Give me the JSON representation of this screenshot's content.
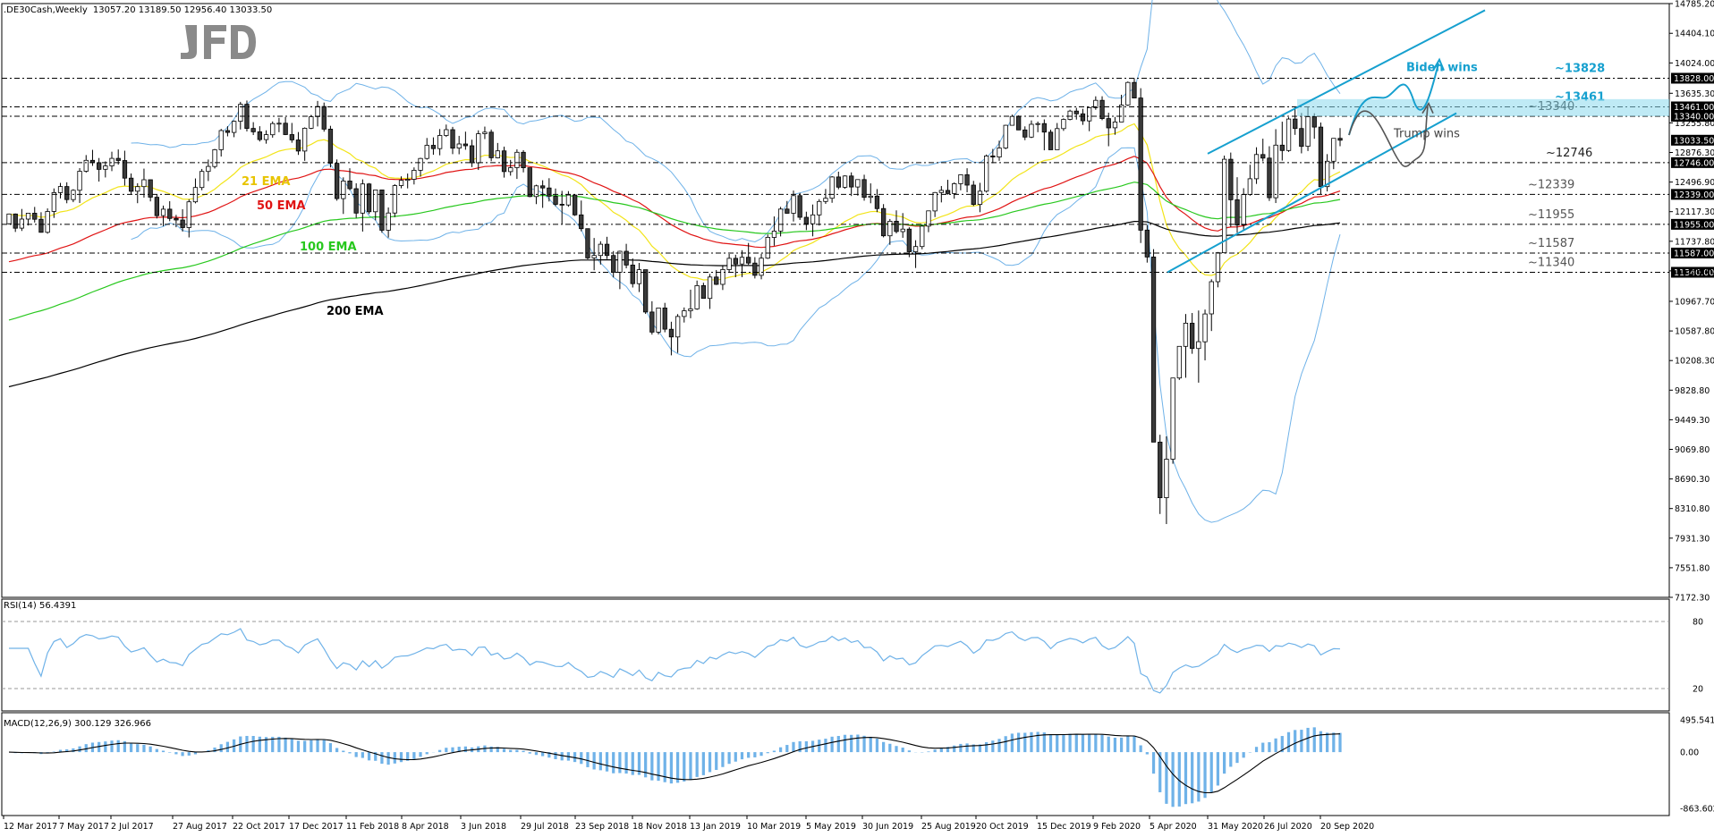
{
  "header": {
    "symbol": ".DE30Cash,Weekly",
    "ohlc": "13057.20 13189.50 12956.40 13033.50"
  },
  "logo": "JFD",
  "chart_data": {
    "type": "candlestick",
    "timeframe": "Weekly",
    "x_tick_labels": [
      "12 Mar 2017",
      "7 May 2017",
      "2 Jul 2017",
      "27 Aug 2017",
      "22 Oct 2017",
      "17 Dec 2017",
      "11 Feb 2018",
      "8 Apr 2018",
      "3 Jun 2018",
      "29 Jul 2018",
      "23 Sep 2018",
      "18 Nov 2018",
      "13 Jan 2019",
      "10 Mar 2019",
      "5 May 2019",
      "30 Jun 2019",
      "25 Aug 2019",
      "20 Oct 2019",
      "15 Dec 2019",
      "9 Feb 2020",
      "5 Apr 2020",
      "31 May 2020",
      "26 Jul 2020",
      "20 Sep 2020"
    ],
    "price_axis_labels": [
      "14785.20",
      "14404.10",
      "14024.00",
      "13635.30",
      "13255.80",
      "12876.30",
      "12496.90",
      "12117.30",
      "11737.80",
      "11358.40",
      "10967.70",
      "10587.80",
      "10208.30",
      "9828.80",
      "9449.30",
      "9069.80",
      "8690.30",
      "8310.80",
      "7931.30",
      "7551.80",
      "7172.30"
    ],
    "price_range": [
      7172.3,
      14785.2
    ],
    "ohlc_weekly": [
      [
        11963,
        12093,
        11953,
        12088
      ],
      [
        12088,
        12094,
        11857,
        11906
      ],
      [
        11906,
        12152,
        11870,
        12022
      ],
      [
        12022,
        12075,
        11940,
        12098
      ],
      [
        12098,
        12178,
        11978,
        12020
      ],
      [
        12020,
        12110,
        11849,
        11853
      ],
      [
        11853,
        12159,
        11835,
        12120
      ],
      [
        12120,
        12415,
        12037,
        12361
      ],
      [
        12361,
        12486,
        12287,
        12439
      ],
      [
        12439,
        12494,
        12225,
        12272
      ],
      [
        12272,
        12405,
        12239,
        12391
      ],
      [
        12391,
        12676,
        12229,
        12635
      ],
      [
        12635,
        12843,
        12618,
        12775
      ],
      [
        12775,
        12910,
        12704,
        12746
      ],
      [
        12746,
        12805,
        12503,
        12660
      ],
      [
        12660,
        12762,
        12556,
        12704
      ],
      [
        12704,
        12886,
        12637,
        12800
      ],
      [
        12800,
        12915,
        12720,
        12773
      ],
      [
        12773,
        12899,
        12452,
        12547
      ],
      [
        12547,
        12607,
        12337,
        12379
      ],
      [
        12379,
        12482,
        12226,
        12438
      ],
      [
        12438,
        12669,
        12297,
        12526
      ],
      [
        12526,
        12529,
        12249,
        12302
      ],
      [
        12302,
        12339,
        12030,
        12066
      ],
      [
        12066,
        12195,
        11931,
        12149
      ],
      [
        12149,
        12251,
        11995,
        12030
      ],
      [
        12030,
        12076,
        11918,
        12011
      ],
      [
        12011,
        12149,
        11863,
        11913
      ],
      [
        11913,
        12276,
        11787,
        12243
      ],
      [
        12243,
        12543,
        12224,
        12427
      ],
      [
        12427,
        12665,
        12392,
        12633
      ],
      [
        12633,
        12786,
        12510,
        12697
      ],
      [
        12697,
        12922,
        12671,
        12912
      ],
      [
        12912,
        13178,
        12824,
        13157
      ],
      [
        13157,
        13213,
        13083,
        13133
      ],
      [
        13133,
        13286,
        13072,
        13276
      ],
      [
        13276,
        13525,
        13171,
        13494
      ],
      [
        13494,
        13542,
        13146,
        13185
      ],
      [
        13185,
        13265,
        13100,
        13141
      ],
      [
        13141,
        13213,
        13017,
        13041
      ],
      [
        13041,
        13160,
        12989,
        13104
      ],
      [
        13104,
        13274,
        13066,
        13247
      ],
      [
        13247,
        13320,
        13136,
        13251
      ],
      [
        13251,
        13331,
        13099,
        13105
      ],
      [
        13105,
        13255,
        13001,
        13037
      ],
      [
        13037,
        13138,
        12845,
        12895
      ],
      [
        12895,
        13198,
        12769,
        13187
      ],
      [
        13187,
        13358,
        13175,
        13335
      ],
      [
        13335,
        13537,
        13210,
        13465
      ],
      [
        13465,
        13516,
        13143,
        13175
      ],
      [
        13175,
        13218,
        12685,
        12738
      ],
      [
        12738,
        12787,
        12258,
        12285
      ],
      [
        12285,
        12557,
        12088,
        12511
      ],
      [
        12511,
        12674,
        12392,
        12412
      ],
      [
        12412,
        12481,
        12037,
        12099
      ],
      [
        12099,
        12531,
        11862,
        12473
      ],
      [
        12473,
        12484,
        12087,
        12116
      ],
      [
        12116,
        12392,
        12005,
        12396
      ],
      [
        12396,
        12398,
        11847,
        11879
      ],
      [
        11879,
        12171,
        11785,
        12100
      ],
      [
        12100,
        12469,
        12047,
        12451
      ],
      [
        12451,
        12570,
        12417,
        12518
      ],
      [
        12518,
        12606,
        12416,
        12532
      ],
      [
        12532,
        12685,
        12466,
        12648
      ],
      [
        12648,
        12808,
        12566,
        12799
      ],
      [
        12799,
        13062,
        12784,
        12968
      ],
      [
        12968,
        13070,
        12847,
        12926
      ],
      [
        12926,
        13176,
        12840,
        13094
      ],
      [
        13094,
        13234,
        13075,
        13169
      ],
      [
        13169,
        13204,
        12855,
        12932
      ],
      [
        12932,
        13089,
        12853,
        12985
      ],
      [
        12985,
        13143,
        12911,
        12962
      ],
      [
        12962,
        13040,
        12689,
        12743
      ],
      [
        12743,
        13160,
        12652,
        13116
      ],
      [
        13116,
        13208,
        13048,
        13136
      ],
      [
        13136,
        13170,
        12764,
        12808
      ],
      [
        12808,
        12998,
        12800,
        12897
      ],
      [
        12897,
        12951,
        12554,
        12631
      ],
      [
        12631,
        12781,
        12579,
        12681
      ],
      [
        12681,
        12916,
        12537,
        12878
      ],
      [
        12878,
        12906,
        12621,
        12680
      ],
      [
        12680,
        12680,
        12302,
        12311
      ],
      [
        12311,
        12463,
        12214,
        12449
      ],
      [
        12449,
        12520,
        12166,
        12421
      ],
      [
        12421,
        12546,
        12248,
        12315
      ],
      [
        12315,
        12414,
        12188,
        12212
      ],
      [
        12212,
        12384,
        11957,
        12203
      ],
      [
        12203,
        12381,
        12180,
        12330
      ],
      [
        12330,
        12342,
        12063,
        12076
      ],
      [
        12076,
        12260,
        11866,
        11899
      ],
      [
        11899,
        11899,
        11506,
        11524
      ],
      [
        11524,
        11780,
        11366,
        11555
      ],
      [
        11555,
        11738,
        11439,
        11700
      ],
      [
        11700,
        11795,
        11511,
        11556
      ],
      [
        11556,
        11612,
        11275,
        11341
      ],
      [
        11341,
        11617,
        11124,
        11609
      ],
      [
        11609,
        11705,
        11391,
        11433
      ],
      [
        11433,
        11518,
        11145,
        11194
      ],
      [
        11194,
        11460,
        11087,
        11373
      ],
      [
        11373,
        11373,
        10806,
        10831
      ],
      [
        10831,
        10969,
        10541,
        10573
      ],
      [
        10573,
        10883,
        10543,
        10882
      ],
      [
        10882,
        10948,
        10571,
        10610
      ],
      [
        10610,
        10706,
        10275,
        10511
      ],
      [
        10511,
        10804,
        10306,
        10774
      ],
      [
        10774,
        10889,
        10696,
        10847
      ],
      [
        10847,
        11117,
        10751,
        10871
      ],
      [
        10871,
        11234,
        10859,
        11169
      ],
      [
        11169,
        11206,
        11004,
        11005
      ],
      [
        11005,
        11319,
        10870,
        11279
      ],
      [
        11279,
        11369,
        11177,
        11185
      ],
      [
        11185,
        11433,
        11113,
        11375
      ],
      [
        11375,
        11575,
        11334,
        11519
      ],
      [
        11519,
        11565,
        11277,
        11446
      ],
      [
        11446,
        11623,
        11278,
        11532
      ],
      [
        11532,
        11716,
        11436,
        11458
      ],
      [
        11458,
        11534,
        11261,
        11301
      ],
      [
        11301,
        11578,
        11250,
        11521
      ],
      [
        11521,
        11825,
        11511,
        11788
      ],
      [
        11788,
        12056,
        11680,
        11869
      ],
      [
        11869,
        12179,
        11800,
        12151
      ],
      [
        12151,
        12254,
        12091,
        12097
      ],
      [
        12097,
        12388,
        11991,
        12323
      ],
      [
        12323,
        12357,
        12011,
        12045
      ],
      [
        12045,
        12117,
        11881,
        11962
      ],
      [
        11962,
        12209,
        11801,
        12076
      ],
      [
        12076,
        12278,
        11939,
        12248
      ],
      [
        12248,
        12408,
        12217,
        12289
      ],
      [
        12289,
        12573,
        12231,
        12562
      ],
      [
        12562,
        12630,
        12404,
        12431
      ],
      [
        12431,
        12583,
        12411,
        12575
      ],
      [
        12575,
        12621,
        12318,
        12434
      ],
      [
        12434,
        12532,
        12322,
        12529
      ],
      [
        12529,
        12591,
        12258,
        12301
      ],
      [
        12301,
        12480,
        12225,
        12317
      ],
      [
        12317,
        12407,
        12111,
        12157
      ],
      [
        12157,
        12214,
        11788,
        11807
      ],
      [
        11807,
        12023,
        11692,
        11994
      ],
      [
        11994,
        12134,
        11839,
        11862
      ],
      [
        11862,
        12099,
        11782,
        11894
      ],
      [
        11894,
        11917,
        11534,
        11604
      ],
      [
        11604,
        11751,
        11395,
        11670
      ],
      [
        11670,
        11952,
        11635,
        11931
      ],
      [
        11931,
        12129,
        11854,
        12127
      ],
      [
        12127,
        12369,
        12048,
        12363
      ],
      [
        12363,
        12446,
        12236,
        12390
      ],
      [
        12390,
        12526,
        12335,
        12350
      ],
      [
        12350,
        12493,
        12283,
        12476
      ],
      [
        12476,
        12597,
        12391,
        12591
      ],
      [
        12591,
        12674,
        12366,
        12458
      ],
      [
        12458,
        12512,
        12190,
        12210
      ],
      [
        12210,
        12487,
        12110,
        12380
      ],
      [
        12380,
        12850,
        12362,
        12832
      ],
      [
        12832,
        12922,
        12738,
        12818
      ],
      [
        12818,
        13028,
        12769,
        12934
      ],
      [
        12934,
        13231,
        12918,
        13225
      ],
      [
        13225,
        13361,
        13222,
        13338
      ],
      [
        13338,
        13351,
        13162,
        13165
      ],
      [
        13165,
        13211,
        13034,
        13073
      ],
      [
        13073,
        13287,
        13061,
        13237
      ],
      [
        13237,
        13273,
        13136,
        13246
      ],
      [
        13246,
        13300,
        12904,
        13137
      ],
      [
        13137,
        13169,
        12914,
        12911
      ],
      [
        12911,
        13254,
        12926,
        13182
      ],
      [
        13182,
        13314,
        13153,
        13300
      ],
      [
        13300,
        13425,
        13288,
        13407
      ],
      [
        13407,
        13449,
        13298,
        13371
      ],
      [
        13371,
        13436,
        13230,
        13281
      ],
      [
        13281,
        13463,
        13149,
        13451
      ],
      [
        13451,
        13596,
        13424,
        13545
      ],
      [
        13545,
        13597,
        13290,
        13311
      ],
      [
        13311,
        13386,
        12956,
        13192
      ],
      [
        13192,
        13332,
        13103,
        13267
      ],
      [
        13267,
        13616,
        13266,
        13484
      ],
      [
        13484,
        13786,
        13473,
        13774
      ],
      [
        13774,
        13827,
        13594,
        13575
      ],
      [
        13575,
        13701,
        11715,
        11881
      ],
      [
        11881,
        11947,
        11464,
        11536
      ],
      [
        11536,
        11637,
        9172,
        9163
      ],
      [
        9163,
        9257,
        8241,
        8450
      ],
      [
        8450,
        9237,
        8112,
        8944
      ],
      [
        8944,
        9986,
        8885,
        9985
      ],
      [
        9985,
        10383,
        9960,
        10391
      ],
      [
        10391,
        10805,
        9988,
        10688
      ],
      [
        10688,
        10818,
        10295,
        10363
      ],
      [
        10363,
        10850,
        9925,
        10450
      ],
      [
        10450,
        10862,
        10211,
        10806
      ],
      [
        10806,
        11250,
        10587,
        11219
      ],
      [
        11219,
        11600,
        11147,
        11591
      ],
      [
        11591,
        12836,
        11583,
        12789
      ],
      [
        12789,
        12875,
        11922,
        12270
      ],
      [
        12270,
        12559,
        11847,
        11946
      ],
      [
        11946,
        12418,
        11882,
        12336
      ],
      [
        12336,
        12719,
        12322,
        12539
      ],
      [
        12539,
        12943,
        12473,
        12850
      ],
      [
        12850,
        13053,
        12762,
        12804
      ],
      [
        12804,
        12956,
        12255,
        12296
      ],
      [
        12296,
        13175,
        12228,
        12970
      ],
      [
        12970,
        13271,
        12772,
        12901
      ],
      [
        12901,
        13327,
        12884,
        13305
      ],
      [
        13305,
        13462,
        13102,
        13184
      ],
      [
        13184,
        13383,
        12865,
        12955
      ],
      [
        12955,
        13461,
        12895,
        13335
      ],
      [
        13335,
        13379,
        13052,
        13202
      ],
      [
        13202,
        13260,
        12340,
        12438
      ],
      [
        12438,
        12855,
        12377,
        12764
      ],
      [
        12764,
        13057,
        12662,
        13057
      ],
      [
        13057,
        13189,
        12956,
        13033
      ]
    ],
    "indicators": {
      "ema": [
        {
          "name": "21 EMA",
          "color": "#f2e419"
        },
        {
          "name": "50 EMA",
          "color": "#e01414"
        },
        {
          "name": "100 EMA",
          "color": "#28c81e"
        },
        {
          "name": "200 EMA",
          "color": "#000000"
        }
      ],
      "bollinger_color": "#6fb2e8",
      "rsi": {
        "label": "RSI(14) 56.4391",
        "levels": [
          20,
          80
        ],
        "range": [
          0,
          100
        ]
      },
      "macd": {
        "label": "MACD(12,26,9) 300.129 326.966",
        "axis_labels": [
          "495.541",
          "0.00",
          "-863.602"
        ]
      }
    },
    "levels": [
      {
        "value": 13828,
        "label": "~13828",
        "color": "#16a0cf",
        "axis_tag": "13828.00"
      },
      {
        "value": 13461,
        "label": "~13461",
        "color": "#16a0cf",
        "axis_tag": "13461.00"
      },
      {
        "value": 13340,
        "label": "~13340",
        "color": "#222222",
        "axis_tag": "13340.00"
      },
      {
        "value": 12746,
        "label": "~12746",
        "color": "#222222",
        "axis_tag": "12746.00"
      },
      {
        "value": 12339,
        "label": "~12339",
        "color": "#555555",
        "axis_tag": "12339.00"
      },
      {
        "value": 11955,
        "label": "~11955",
        "color": "#555555",
        "axis_tag": "11955.00"
      },
      {
        "value": 11587,
        "label": "~11587",
        "color": "#555555",
        "axis_tag": "11587.00"
      },
      {
        "value": 11340,
        "label": "~11340",
        "color": "#555555",
        "axis_tag": "11340.00"
      }
    ],
    "current_price_tag": "13033.50",
    "annotations": [
      {
        "text": "Biden wins",
        "color": "#16a0cf"
      },
      {
        "text": "Trump wins",
        "color": "#444444"
      }
    ]
  }
}
